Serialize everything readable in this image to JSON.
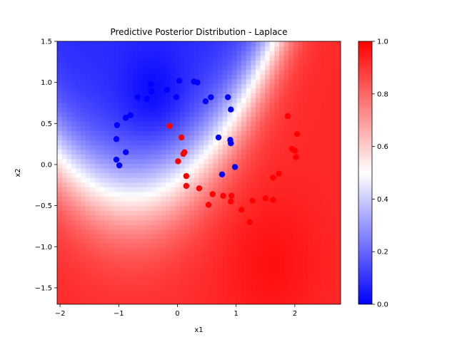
{
  "chart_data": {
    "type": "scatter",
    "title": "Predictive Posterior Distribution - Laplace",
    "xlabel": "x1",
    "ylabel": "x2",
    "xlim": [
      -2.05,
      2.78
    ],
    "ylim": [
      -1.7,
      1.5
    ],
    "xticks": [
      -2,
      -1,
      0,
      1,
      2
    ],
    "yticks": [
      -1.5,
      -1.0,
      -0.5,
      0.0,
      0.5,
      1.0,
      1.5
    ],
    "background": "predictive probability contour field, bwr colormap",
    "colorbar": {
      "cmap": "bwr",
      "range": [
        0.0,
        1.0
      ],
      "ticks": [
        0.0,
        0.2,
        0.4,
        0.6,
        0.8,
        1.0
      ]
    },
    "colors": {
      "class0": "#0000ff",
      "class1": "#ff0000"
    },
    "series": [
      {
        "color": "#0000ff",
        "points": [
          [
            -1.03,
            0.48
          ],
          [
            -0.88,
            0.57
          ],
          [
            -0.8,
            0.6
          ],
          [
            -0.68,
            0.82
          ],
          [
            -0.52,
            0.8
          ],
          [
            -0.45,
            0.98
          ],
          [
            -0.44,
            0.89
          ],
          [
            -0.18,
            0.91
          ],
          [
            -0.02,
            0.82
          ],
          [
            0.03,
            1.02
          ],
          [
            0.28,
            1.01
          ],
          [
            0.34,
            1.0
          ],
          [
            0.48,
            0.77
          ],
          [
            0.57,
            0.82
          ],
          [
            0.86,
            0.82
          ],
          [
            0.91,
            0.67
          ],
          [
            -1.04,
            0.31
          ],
          [
            -0.88,
            0.15
          ],
          [
            -1.04,
            0.06
          ],
          [
            -0.99,
            -0.01
          ],
          [
            0.7,
            0.33
          ],
          [
            0.9,
            0.3
          ],
          [
            0.91,
            0.26
          ],
          [
            0.76,
            -0.12
          ],
          [
            0.98,
            -0.03
          ]
        ]
      },
      {
        "color": "#ff0000",
        "points": [
          [
            -0.13,
            0.47
          ],
          [
            0.07,
            0.33
          ],
          [
            0.1,
            0.13
          ],
          [
            0.12,
            0.15
          ],
          [
            0.01,
            0.04
          ],
          [
            0.15,
            -0.14
          ],
          [
            0.15,
            -0.26
          ],
          [
            0.37,
            -0.29
          ],
          [
            0.53,
            -0.49
          ],
          [
            0.6,
            -0.36
          ],
          [
            0.78,
            -0.38
          ],
          [
            0.92,
            -0.38
          ],
          [
            0.91,
            -0.45
          ],
          [
            1.09,
            -0.55
          ],
          [
            1.28,
            -0.44
          ],
          [
            1.23,
            -0.7
          ],
          [
            1.5,
            -0.41
          ],
          [
            1.63,
            -0.16
          ],
          [
            1.63,
            -0.43
          ],
          [
            1.73,
            -0.11
          ],
          [
            1.88,
            0.59
          ],
          [
            1.95,
            0.19
          ],
          [
            2.0,
            0.17
          ],
          [
            2.02,
            0.09
          ],
          [
            2.04,
            0.37
          ]
        ]
      }
    ]
  }
}
